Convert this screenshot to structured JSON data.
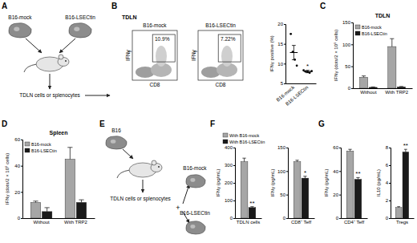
{
  "panel_labels": [
    "A",
    "B",
    "C",
    "D",
    "E",
    "F",
    "G"
  ],
  "diagram_a": {
    "cells": [
      "B16-mock",
      "B16-LSECtin"
    ],
    "output": "TDLN cells or splenocytes"
  },
  "diagram_e": {
    "cell": "B16",
    "output": "TDLN cells or splenocytes",
    "join": "+",
    "cocultures": [
      "B16-mock",
      "B16-LSECtin"
    ]
  },
  "flow": {
    "title": "TDLN",
    "x_label": "CD8",
    "y_label": "IFNγ",
    "plots": [
      {
        "name": "B16-mock",
        "percent_label": "10.9%"
      },
      {
        "name": "B16-LSECtin",
        "percent_label": "7.22%"
      }
    ]
  },
  "chart_data": [
    {
      "type": "dot_plot",
      "categories": [
        "B16-mock",
        "B16-LSECtin"
      ],
      "ylabel": "IFNγ positive (%)",
      "points": [
        [
          17.5,
          13,
          11,
          9.5
        ],
        [
          8.3,
          8.0,
          7.9,
          7.7,
          8.1
        ]
      ],
      "means": [
        12.8,
        8.0
      ],
      "errors": [
        1.8,
        0.3
      ],
      "color": "#000000",
      "ylim": [
        5,
        20
      ],
      "yticks": [
        5,
        10,
        15,
        20
      ],
      "significance": [
        null,
        "*"
      ]
    },
    {
      "type": "bar",
      "title": "TDLN",
      "categories": [
        "Without",
        "With TRP2"
      ],
      "ylabel": "IFNγ (dots/2 × 10⁵ cells)",
      "series": [
        {
          "name": "B16-mock",
          "color": "#a6a6a6",
          "values": [
            25,
            95
          ],
          "errors": [
            3,
            18
          ]
        },
        {
          "name": "B16-LSECtin",
          "color": "#1a1a1a",
          "values": [
            2,
            3
          ],
          "errors": [
            1,
            1
          ]
        }
      ],
      "ylim": [
        0,
        150
      ],
      "yticks": [
        0,
        50,
        100,
        150
      ],
      "legend": "top-left"
    },
    {
      "type": "bar",
      "title": "Spleen",
      "categories": [
        "Without",
        "With TRP2"
      ],
      "ylabel": "IFNγ (dots/2 × 10⁵ cells)",
      "series": [
        {
          "name": "B16-mock",
          "color": "#a6a6a6",
          "values": [
            12,
            45
          ],
          "errors": [
            1,
            9
          ]
        },
        {
          "name": "B16-LSECtin",
          "color": "#1a1a1a",
          "values": [
            5,
            12
          ],
          "errors": [
            3,
            2
          ]
        }
      ],
      "ylim": [
        0,
        60
      ],
      "yticks": [
        0,
        20,
        40,
        60
      ],
      "legend": "top-left"
    },
    {
      "type": "bar",
      "categories": [
        "TDLN cells"
      ],
      "ylabel": "IFNγ (pg/mL)",
      "series": [
        {
          "name": "With B16-mock",
          "color": "#a6a6a6",
          "values": [
            320
          ],
          "errors": [
            20
          ]
        },
        {
          "name": "With B16-LSECtin",
          "color": "#1a1a1a",
          "values": [
            60
          ],
          "errors": [
            5
          ]
        }
      ],
      "ylim": [
        0,
        400
      ],
      "yticks": [
        0,
        100,
        200,
        300,
        400
      ],
      "legend": "top",
      "significance": [
        "**"
      ]
    },
    {
      "type": "bar",
      "categories": [
        "CD8⁺ Teff"
      ],
      "ylabel": "IFNγ (pg/mL)",
      "series": [
        {
          "color": "#a6a6a6",
          "values": [
            120
          ],
          "errors": [
            3
          ]
        },
        {
          "color": "#1a1a1a",
          "values": [
            85
          ],
          "errors": [
            4
          ]
        }
      ],
      "ylim": [
        0,
        150
      ],
      "yticks": [
        0,
        50,
        100,
        150
      ],
      "significance": [
        "*"
      ]
    },
    {
      "type": "bar",
      "categories": [
        "CD4⁺ Teff"
      ],
      "ylabel": "IFNγ (pg/mL)",
      "series": [
        {
          "color": "#a6a6a6",
          "values": [
            57
          ],
          "errors": [
            1.5
          ]
        },
        {
          "color": "#1a1a1a",
          "values": [
            33
          ],
          "errors": [
            1.5
          ]
        }
      ],
      "ylim": [
        0,
        60
      ],
      "yticks": [
        0,
        20,
        40,
        60
      ],
      "significance": [
        "**"
      ]
    },
    {
      "type": "bar",
      "categories": [
        "Tregs"
      ],
      "ylabel": "IL10 (pg/mL)",
      "series": [
        {
          "color": "#a6a6a6",
          "values": [
            1.2
          ],
          "errors": [
            0.1
          ]
        },
        {
          "color": "#1a1a1a",
          "values": [
            7.5
          ],
          "errors": [
            0.3
          ]
        }
      ],
      "ylim": [
        0,
        8
      ],
      "yticks": [
        0,
        2,
        4,
        6,
        8
      ],
      "significance": [
        "**"
      ]
    }
  ]
}
